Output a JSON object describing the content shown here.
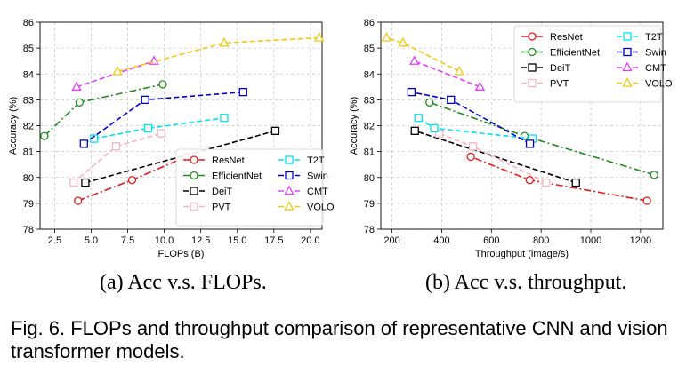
{
  "figure": {
    "caption": "Fig. 6. FLOPs and throughput comparison of representative CNN and vision transformer models."
  },
  "colors": {
    "ResNet": "#e41a1c",
    "EfficientNet": "#228b22",
    "DeiT": "#000000",
    "PVT": "#f4b6c2",
    "T2T": "#00e5ee",
    "Swin": "#0000cd",
    "CMT": "#e040fb",
    "VOLO": "#f2c80f"
  },
  "chart_data": [
    {
      "type": "line",
      "subcaption": "(a) Acc v.s. FLOPs.",
      "xlabel": "FLOPs (B)",
      "ylabel": "Accuracy (%)",
      "xlim": [
        1.5,
        20.8
      ],
      "ylim": [
        78,
        86
      ],
      "xticks": [
        "2.5",
        "5.0",
        "7.5",
        "10.0",
        "12.5",
        "15.0",
        "17.5",
        "20.0"
      ],
      "yticks": [
        "78",
        "79",
        "80",
        "81",
        "82",
        "83",
        "84",
        "85",
        "86"
      ],
      "grid": true,
      "legend_position": "lower-right",
      "series": [
        {
          "name": "ResNet",
          "linestyle": "dashdot",
          "marker": "circle",
          "x": [
            4.1,
            7.8,
            11.5
          ],
          "y": [
            79.1,
            79.9,
            80.8
          ]
        },
        {
          "name": "EfficientNet",
          "linestyle": "dashdot",
          "marker": "circle",
          "x": [
            1.8,
            4.2,
            9.9
          ],
          "y": [
            81.6,
            82.9,
            83.6
          ]
        },
        {
          "name": "DeiT",
          "linestyle": "dashed",
          "marker": "square",
          "x": [
            4.6,
            17.6
          ],
          "y": [
            79.8,
            81.8
          ]
        },
        {
          "name": "PVT",
          "linestyle": "dashed",
          "marker": "square",
          "x": [
            3.8,
            6.7,
            9.8
          ],
          "y": [
            79.8,
            81.2,
            81.7
          ]
        },
        {
          "name": "T2T",
          "linestyle": "dashed",
          "marker": "square",
          "x": [
            5.2,
            8.9,
            14.1
          ],
          "y": [
            81.5,
            81.9,
            82.3
          ]
        },
        {
          "name": "Swin",
          "linestyle": "dashed",
          "marker": "square",
          "x": [
            4.5,
            8.7,
            15.4
          ],
          "y": [
            81.3,
            83.0,
            83.3
          ]
        },
        {
          "name": "CMT",
          "linestyle": "dashed",
          "marker": "triangle",
          "x": [
            4.0,
            9.3
          ],
          "y": [
            83.5,
            84.5
          ]
        },
        {
          "name": "VOLO",
          "linestyle": "dashed",
          "marker": "triangle",
          "x": [
            6.8,
            14.1,
            20.6
          ],
          "y": [
            84.1,
            85.2,
            85.4
          ]
        }
      ]
    },
    {
      "type": "line",
      "subcaption": "(b) Acc v.s. throughput.",
      "xlabel": "Throughput (image/s)",
      "ylabel": "Accuracy (%)",
      "xlim": [
        155,
        1290
      ],
      "ylim": [
        78,
        86
      ],
      "xticks": [
        "200",
        "400",
        "600",
        "800",
        "1000",
        "1200"
      ],
      "yticks": [
        "78",
        "79",
        "80",
        "81",
        "82",
        "83",
        "84",
        "85",
        "86"
      ],
      "grid": true,
      "legend_position": "top-right",
      "series": [
        {
          "name": "ResNet",
          "linestyle": "dashdot",
          "marker": "circle",
          "x": [
            1226,
            754,
            517
          ],
          "y": [
            79.1,
            79.9,
            80.8
          ]
        },
        {
          "name": "EfficientNet",
          "linestyle": "dashdot",
          "marker": "circle",
          "x": [
            1255,
            733,
            351
          ],
          "y": [
            80.1,
            81.6,
            82.9
          ]
        },
        {
          "name": "DeiT",
          "linestyle": "dashed",
          "marker": "square",
          "x": [
            940,
            292
          ],
          "y": [
            79.8,
            81.8
          ]
        },
        {
          "name": "PVT",
          "linestyle": "dashed",
          "marker": "square",
          "x": [
            820,
            526,
            390
          ],
          "y": [
            79.8,
            81.2,
            81.7
          ]
        },
        {
          "name": "T2T",
          "linestyle": "dashed",
          "marker": "square",
          "x": [
            765,
            370,
            306
          ],
          "y": [
            81.5,
            81.9,
            82.3
          ]
        },
        {
          "name": "Swin",
          "linestyle": "dashed",
          "marker": "square",
          "x": [
            755,
            437,
            278
          ],
          "y": [
            81.3,
            83.0,
            83.3
          ]
        },
        {
          "name": "CMT",
          "linestyle": "dashed",
          "marker": "triangle",
          "x": [
            554,
            290
          ],
          "y": [
            83.5,
            84.5
          ]
        },
        {
          "name": "VOLO",
          "linestyle": "dashed",
          "marker": "triangle",
          "x": [
            471,
            244,
            178
          ],
          "y": [
            84.1,
            85.2,
            85.4
          ]
        }
      ]
    }
  ]
}
